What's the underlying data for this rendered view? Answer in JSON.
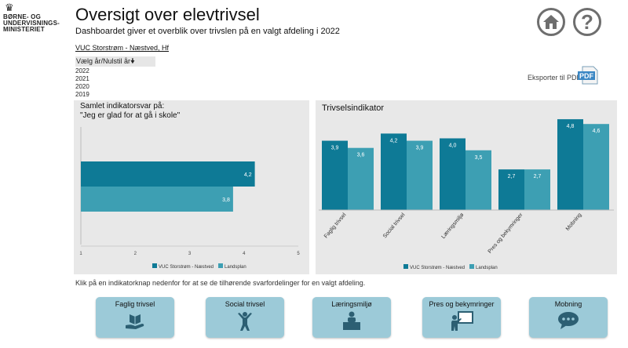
{
  "ministry": {
    "name": "BØRNE- OG\nUNDERVISNINGS-\nMINISTERIET",
    "crown_icon": "crown-icon"
  },
  "header": {
    "title": "Oversigt over elevtrivsel",
    "subtitle": "Dashboardet giver et overblik over trivslen på en valgt afdeling i 2022",
    "department": "VUC Storstrøm - Næstved, Hf"
  },
  "filter": {
    "label": "Vælg år/Nulstil år",
    "sort_icon": "arrow-down-icon",
    "years": [
      "2022",
      "2021",
      "2020",
      "2019"
    ]
  },
  "nav": {
    "home_icon": "home-icon",
    "help_icon": "question-icon",
    "help_glyph": "?"
  },
  "export": {
    "label": "Eksporter til PDF:",
    "icon": "pdf-icon",
    "icon_text": "PDF"
  },
  "colors": {
    "dept": "#0e7a96",
    "national": "#3d9fb3",
    "tile": "#9ccad8",
    "panel": "#e8e8e8"
  },
  "chart_data": [
    {
      "type": "bar",
      "orientation": "horizontal",
      "title": "Samlet indikatorsvar på:\n\"Jeg er glad for at gå i skole\"",
      "series": [
        {
          "name": "VUC Storstrøm - Næstved",
          "values": [
            4.2
          ]
        },
        {
          "name": "Landsplan",
          "values": [
            3.8
          ]
        }
      ],
      "xlim": [
        1,
        5
      ],
      "xticks": [
        "1",
        "2",
        "3",
        "4",
        "5"
      ],
      "data_labels": [
        "4,2",
        "3,8"
      ],
      "legend": "bottom"
    },
    {
      "type": "bar",
      "title": "Trivselsindikator",
      "categories": [
        "Faglig trivsel",
        "Social trivsel",
        "Læringsmiljø",
        "Pres og bekymringer",
        "Mobning"
      ],
      "series": [
        {
          "name": "VUC Storstrøm - Næstved",
          "values": [
            3.9,
            4.2,
            4.0,
            2.7,
            4.8
          ],
          "labels": [
            "3,9",
            "4,2",
            "4,0",
            "2,7",
            "4,8"
          ]
        },
        {
          "name": "Landsplan",
          "values": [
            3.6,
            3.9,
            3.5,
            2.7,
            4.6
          ],
          "labels": [
            "3,6",
            "3,9",
            "3,5",
            "2,7",
            "4,6"
          ]
        }
      ],
      "ylim": [
        1,
        5
      ],
      "legend": "bottom"
    }
  ],
  "info_text": "Klik på en indikatorknap nedenfor for at se de tilhørende svarfordelinger for en valgt afdeling.",
  "buttons": [
    {
      "label": "Faglig trivsel",
      "icon": "hand-book-icon"
    },
    {
      "label": "Social trivsel",
      "icon": "person-cheering-icon"
    },
    {
      "label": "Læringsmiljø",
      "icon": "student-desk-icon"
    },
    {
      "label": "Pres og bekymringer",
      "icon": "teacher-board-icon"
    },
    {
      "label": "Mobning",
      "icon": "speech-bubble-icon"
    }
  ]
}
